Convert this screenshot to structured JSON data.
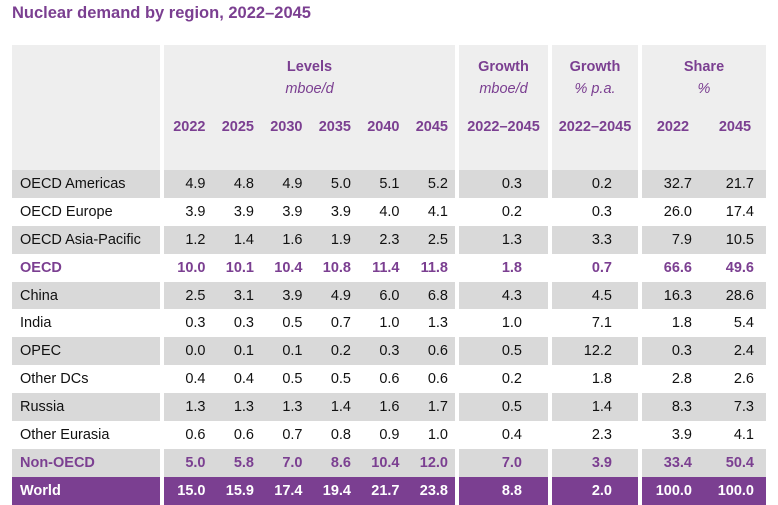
{
  "title": "Nuclear demand by region, 2022–2045",
  "header": {
    "levels_label": "Levels",
    "levels_unit": "mboe/d",
    "growth_abs_label": "Growth",
    "growth_abs_unit": "mboe/d",
    "growth_pct_label": "Growth",
    "growth_pct_unit": "% p.a.",
    "share_label": "Share",
    "share_unit": "%",
    "years": [
      "2022",
      "2025",
      "2030",
      "2035",
      "2040",
      "2045"
    ],
    "growth_abs_period": "2022–2045",
    "growth_pct_period": "2022–2045",
    "share_years": [
      "2022",
      "2045"
    ]
  },
  "rows": [
    {
      "region": "OECD Americas",
      "levels": [
        "4.9",
        "4.8",
        "4.9",
        "5.0",
        "5.1",
        "5.2"
      ],
      "growth_abs": "0.3",
      "growth_pct": "0.2",
      "share": [
        "32.7",
        "21.7"
      ]
    },
    {
      "region": "OECD Europe",
      "levels": [
        "3.9",
        "3.9",
        "3.9",
        "3.9",
        "4.0",
        "4.1"
      ],
      "growth_abs": "0.2",
      "growth_pct": "0.3",
      "share": [
        "26.0",
        "17.4"
      ]
    },
    {
      "region": "OECD Asia-Pacific",
      "levels": [
        "1.2",
        "1.4",
        "1.6",
        "1.9",
        "2.3",
        "2.5"
      ],
      "growth_abs": "1.3",
      "growth_pct": "3.3",
      "share": [
        "7.9",
        "10.5"
      ]
    },
    {
      "region": "OECD",
      "levels": [
        "10.0",
        "10.1",
        "10.4",
        "10.8",
        "11.4",
        "11.8"
      ],
      "growth_abs": "1.8",
      "growth_pct": "0.7",
      "share": [
        "66.6",
        "49.6"
      ]
    },
    {
      "region": "China",
      "levels": [
        "2.5",
        "3.1",
        "3.9",
        "4.9",
        "6.0",
        "6.8"
      ],
      "growth_abs": "4.3",
      "growth_pct": "4.5",
      "share": [
        "16.3",
        "28.6"
      ]
    },
    {
      "region": "India",
      "levels": [
        "0.3",
        "0.3",
        "0.5",
        "0.7",
        "1.0",
        "1.3"
      ],
      "growth_abs": "1.0",
      "growth_pct": "7.1",
      "share": [
        "1.8",
        "5.4"
      ]
    },
    {
      "region": "OPEC",
      "levels": [
        "0.0",
        "0.1",
        "0.1",
        "0.2",
        "0.3",
        "0.6"
      ],
      "growth_abs": "0.5",
      "growth_pct": "12.2",
      "share": [
        "0.3",
        "2.4"
      ]
    },
    {
      "region": "Other DCs",
      "levels": [
        "0.4",
        "0.4",
        "0.5",
        "0.5",
        "0.6",
        "0.6"
      ],
      "growth_abs": "0.2",
      "growth_pct": "1.8",
      "share": [
        "2.8",
        "2.6"
      ]
    },
    {
      "region": "Russia",
      "levels": [
        "1.3",
        "1.3",
        "1.3",
        "1.4",
        "1.6",
        "1.7"
      ],
      "growth_abs": "0.5",
      "growth_pct": "1.4",
      "share": [
        "8.3",
        "7.3"
      ]
    },
    {
      "region": "Other Eurasia",
      "levels": [
        "0.6",
        "0.6",
        "0.7",
        "0.8",
        "0.9",
        "1.0"
      ],
      "growth_abs": "0.4",
      "growth_pct": "2.3",
      "share": [
        "3.9",
        "4.1"
      ]
    },
    {
      "region": "Non-OECD",
      "levels": [
        "5.0",
        "5.8",
        "7.0",
        "8.6",
        "10.4",
        "12.0"
      ],
      "growth_abs": "7.0",
      "growth_pct": "3.9",
      "share": [
        "33.4",
        "50.4"
      ]
    },
    {
      "region": "World",
      "levels": [
        "15.0",
        "15.9",
        "17.4",
        "19.4",
        "21.7",
        "23.8"
      ],
      "growth_abs": "8.8",
      "growth_pct": "2.0",
      "share": [
        "100.0",
        "100.0"
      ]
    }
  ],
  "colors": {
    "accent": "#7B3F91",
    "shade": "#D9D9D9",
    "header_bg": "#EEEEEE"
  }
}
